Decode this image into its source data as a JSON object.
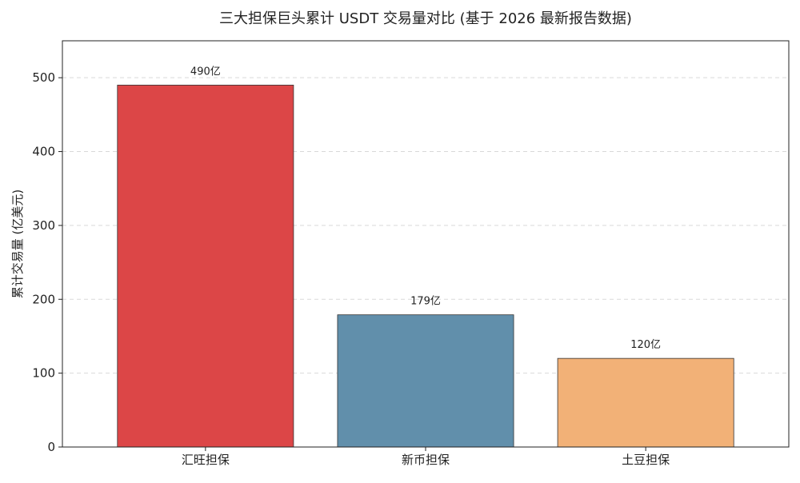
{
  "chart_data": {
    "type": "bar",
    "title": "三大担保巨头累计 USDT 交易量对比 (基于 2026 最新报告数据)",
    "xlabel": "",
    "ylabel": "累计交易量 (亿美元)",
    "categories": [
      "汇旺担保",
      "新币担保",
      "土豆担保"
    ],
    "values": [
      490,
      179,
      120
    ],
    "data_labels": [
      "490亿",
      "179亿",
      "120亿"
    ],
    "colors": [
      "#dc4647",
      "#618fab",
      "#f2b177"
    ],
    "ylim": [
      0,
      550
    ],
    "yticks": [
      0,
      100,
      200,
      300,
      400,
      500
    ],
    "grid": true,
    "legend": "none"
  }
}
